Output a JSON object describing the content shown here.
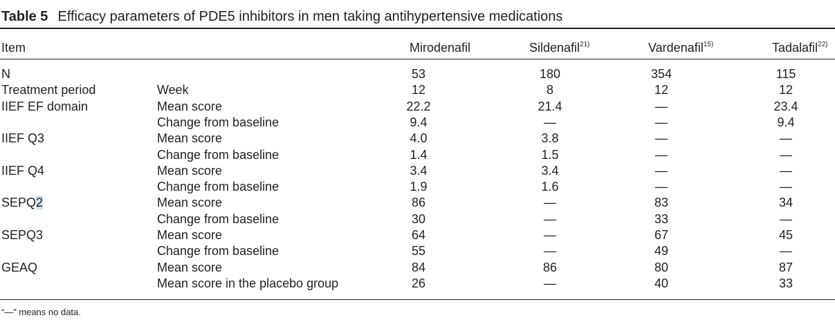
{
  "caption": {
    "label": "Table 5",
    "title": "Efficacy parameters of PDE5 inhibitors in men taking antihypertensive medications"
  },
  "headers": {
    "item": "Item",
    "mirodenafil": "Mirodenafil",
    "sildenafil": "Sildenafil",
    "sildenafil_ref": "21)",
    "vardenafil": "Vardenafil",
    "vardenafil_ref": "15)",
    "tadalafil": "Tadalafil",
    "tadalafil_ref": "22)"
  },
  "rows": [
    {
      "item": "N",
      "sub": "",
      "mir": "53",
      "sil": "180",
      "var": "354",
      "tad": "115"
    },
    {
      "item": "Treatment period",
      "sub": "Week",
      "mir": "12",
      "sil": "8",
      "var": "12",
      "tad": "12"
    },
    {
      "item": "IIEF EF domain",
      "sub": "Mean score",
      "mir": "22.2",
      "sil": "21.4",
      "var": "—",
      "tad": "23.4"
    },
    {
      "item": "",
      "sub": "Change from baseline",
      "mir": "9.4",
      "sil": "—",
      "var": "—",
      "tad": "9.4"
    },
    {
      "item": "IIEF Q3",
      "sub": "Mean score",
      "mir": "4.0",
      "sil": "3.8",
      "var": "—",
      "tad": "—"
    },
    {
      "item": "",
      "sub": "Change from baseline",
      "mir": "1.4",
      "sil": "1.5",
      "var": "—",
      "tad": "—"
    },
    {
      "item": "IIEF Q4",
      "sub": "Mean score",
      "mir": "3.4",
      "sil": "3.4",
      "var": "—",
      "tad": "—"
    },
    {
      "item": "",
      "sub": "Change from baseline",
      "mir": "1.9",
      "sil": "1.6",
      "var": "—",
      "tad": "—"
    },
    {
      "item": "SEPQ2",
      "sub": "Mean score",
      "mir": "86",
      "sil": "—",
      "var": "83",
      "tad": "34"
    },
    {
      "item": "",
      "sub": "Change from baseline",
      "mir": "30",
      "sil": "—",
      "var": "33",
      "tad": "—"
    },
    {
      "item": "SEPQ3",
      "sub": "Mean score",
      "mir": "64",
      "sil": "—",
      "var": "67",
      "tad": "45"
    },
    {
      "item": "",
      "sub": "Change from baseline",
      "mir": "55",
      "sil": "—",
      "var": "49",
      "tad": "—"
    },
    {
      "item": "GEAQ",
      "sub": "Mean score",
      "mir": "84",
      "sil": "86",
      "var": "80",
      "tad": "87"
    },
    {
      "item": "",
      "sub": "Mean score in the placebo group",
      "mir": "26",
      "sil": "—",
      "var": "40",
      "tad": "33"
    }
  ],
  "footnote": "“—” means no data.",
  "colors": {
    "rule": "#231f20",
    "text": "#231f20",
    "highlight": "#cfe3f2"
  }
}
